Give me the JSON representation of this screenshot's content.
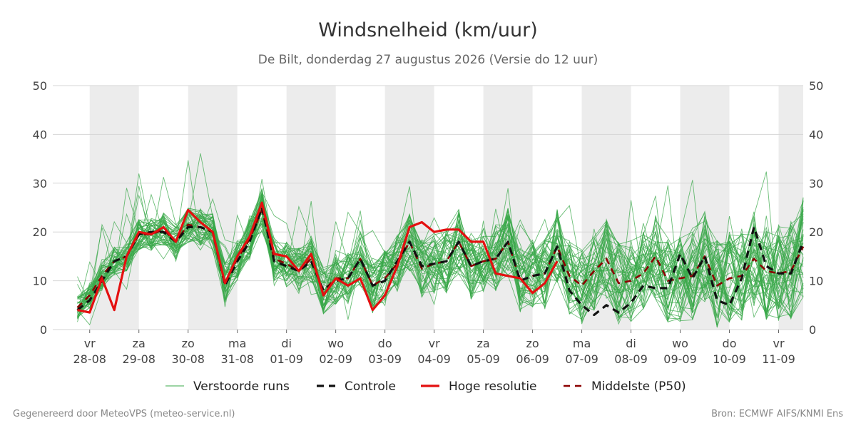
{
  "chart_data": {
    "type": "line",
    "title": "Windsnelheid (km/uur)",
    "subtitle": "De Bilt, donderdag 27 augustus 2026 (Versie do 12 uur)",
    "ylim": [
      0,
      50
    ],
    "yticks": [
      0,
      10,
      20,
      30,
      40,
      50
    ],
    "xlim": [
      -0.75,
      14.5
    ],
    "x_ticks": [
      {
        "x": 0,
        "day": "vr",
        "date": "28-08"
      },
      {
        "x": 1,
        "day": "za",
        "date": "29-08"
      },
      {
        "x": 2,
        "day": "zo",
        "date": "30-08"
      },
      {
        "x": 3,
        "day": "ma",
        "date": "31-08"
      },
      {
        "x": 4,
        "day": "di",
        "date": "01-09"
      },
      {
        "x": 5,
        "day": "wo",
        "date": "02-09"
      },
      {
        "x": 6,
        "day": "do",
        "date": "03-09"
      },
      {
        "x": 7,
        "day": "vr",
        "date": "04-09"
      },
      {
        "x": 8,
        "day": "za",
        "date": "05-09"
      },
      {
        "x": 9,
        "day": "zo",
        "date": "06-09"
      },
      {
        "x": 10,
        "day": "ma",
        "date": "07-09"
      },
      {
        "x": 11,
        "day": "di",
        "date": "08-09"
      },
      {
        "x": 12,
        "day": "wo",
        "date": "09-09"
      },
      {
        "x": 13,
        "day": "do",
        "date": "10-09"
      },
      {
        "x": 14,
        "day": "vr",
        "date": "11-09"
      }
    ],
    "grid": true,
    "legend_position": "bottom",
    "colors": {
      "ensemble": "#3aa84a",
      "control": "#111111",
      "high_res": "#e41010",
      "median": "#8b0000",
      "shade": "#ececec",
      "grid": "#d6d6d6"
    },
    "legend": [
      {
        "key": "ensemble",
        "label": "Verstoorde runs"
      },
      {
        "key": "control",
        "label": "Controle"
      },
      {
        "key": "high_res",
        "label": "Hoge resolutie"
      },
      {
        "key": "median",
        "label": "Middelste (P50)"
      }
    ],
    "shaded_days": [
      [
        0,
        1
      ],
      [
        2,
        3
      ],
      [
        4,
        5
      ],
      [
        6,
        7
      ],
      [
        8,
        9
      ],
      [
        10,
        11
      ],
      [
        12,
        13
      ],
      [
        14,
        14.5
      ]
    ],
    "ensemble_stats": {
      "step": 0.25,
      "count": 50,
      "note_min": [
        1,
        2,
        3,
        8,
        10,
        12,
        12,
        11,
        14,
        12,
        4,
        5,
        7,
        7,
        10,
        8,
        4,
        2,
        3,
        4,
        4,
        6,
        7,
        5,
        6,
        3,
        5,
        6,
        3,
        3,
        2,
        3,
        3,
        3,
        3,
        3,
        3,
        2,
        3,
        3,
        3,
        3,
        3,
        2,
        3,
        4,
        3,
        2,
        2,
        2,
        3,
        3,
        3,
        3,
        3,
        3,
        3,
        3,
        3,
        3,
        2
      ]
    },
    "series": [
      {
        "key": "high_res",
        "x_start": -0.25,
        "step": 0.25,
        "values": [
          4,
          3.5,
          10.5,
          4,
          15,
          20,
          19.5,
          21,
          18,
          24.5,
          22,
          20,
          9.5,
          15,
          19,
          26,
          15.5,
          15,
          12,
          15.5,
          7,
          10.5,
          9,
          10.5,
          4,
          7,
          13,
          21,
          22,
          20,
          20.5,
          20.5,
          18,
          18,
          11.5,
          11,
          10.5,
          7.5,
          9.5,
          14,
          null,
          null,
          null,
          null,
          null,
          null,
          null,
          null,
          null,
          null,
          null,
          null,
          null,
          null,
          null,
          null,
          null,
          null,
          null,
          null,
          null
        ]
      },
      {
        "key": "control",
        "x_start": -0.25,
        "step": 0.25,
        "values": [
          4,
          6,
          10,
          14,
          15,
          19.5,
          20,
          20,
          18,
          21,
          21,
          20,
          9,
          14,
          18,
          25,
          14,
          13,
          12,
          14,
          8,
          10,
          10.5,
          14.5,
          9,
          10,
          14,
          18,
          13,
          13.5,
          14,
          18,
          13,
          14,
          14.5,
          18,
          10,
          11,
          11.5,
          17,
          8,
          5,
          3,
          5,
          3.5,
          5.5,
          9,
          8.5,
          8.5,
          15.5,
          10.5,
          15,
          6,
          5,
          10.5,
          21,
          13,
          11.5,
          11.5,
          18
        ]
      },
      {
        "key": "median",
        "x_start": -0.25,
        "step": 0.25,
        "values": [
          4.5,
          7,
          11,
          14,
          15,
          19.5,
          19.5,
          20.5,
          18,
          21.5,
          21,
          20,
          9.5,
          14.5,
          18.5,
          24.5,
          14.5,
          13.5,
          12,
          14.5,
          8,
          10.5,
          10.5,
          14.5,
          9,
          10.5,
          13.5,
          18,
          12.5,
          13.5,
          14,
          18,
          13,
          14,
          14.5,
          18,
          10,
          11,
          11.5,
          17,
          11,
          9,
          12,
          14.5,
          9.5,
          10,
          11.5,
          15,
          10,
          10.5,
          11,
          15,
          9,
          10.5,
          11,
          14.5,
          12,
          11.5,
          12,
          17
        ]
      }
    ]
  },
  "footer": {
    "left": "Gegenereerd door MeteoVPS (meteo-service.nl)",
    "right": "Bron: ECMWF AIFS/KNMI Ens"
  }
}
